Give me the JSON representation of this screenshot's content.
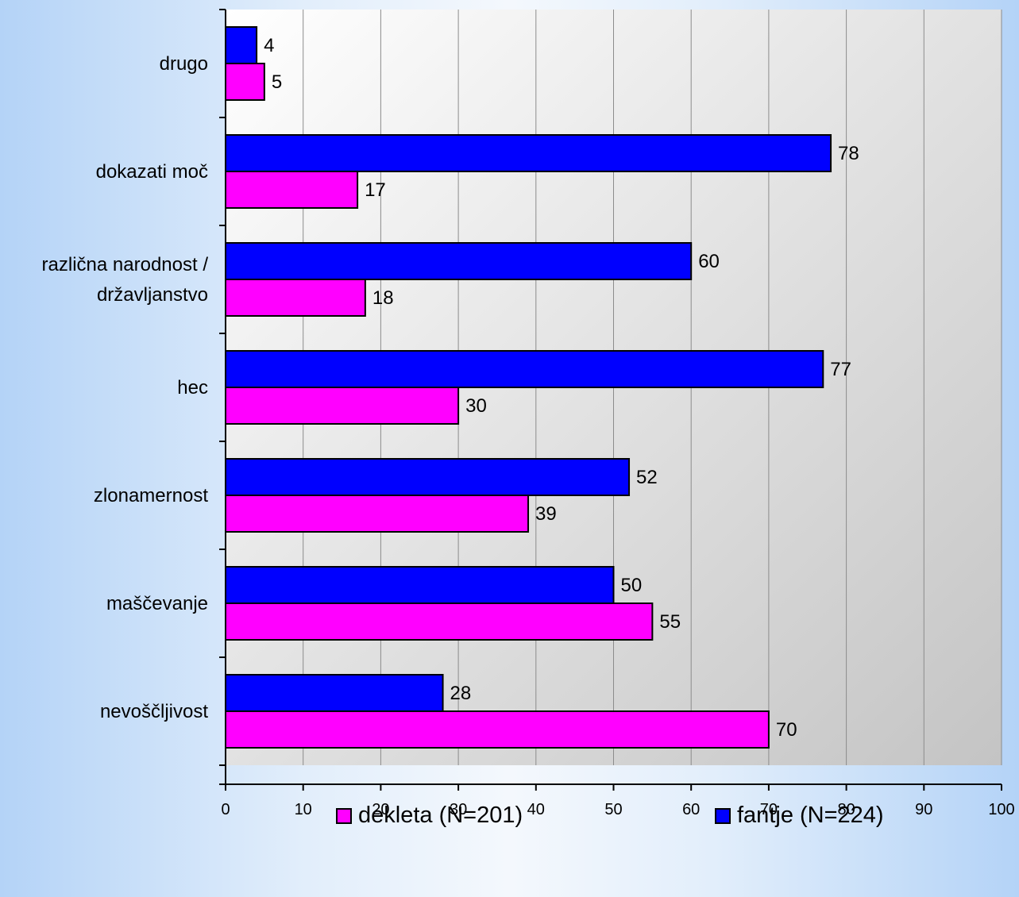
{
  "chart_data": {
    "type": "bar",
    "orientation": "horizontal",
    "categories": [
      "drugo",
      "dokazati moč",
      "različna narodnost / državljanstvo",
      "hec",
      "zlonamernost",
      "maščevanje",
      "nevoščljivost"
    ],
    "category_lines": [
      [
        "drugo"
      ],
      [
        "dokazati moč"
      ],
      [
        "različna narodnost /",
        "državljanstvo"
      ],
      [
        "hec"
      ],
      [
        "zlonamernost"
      ],
      [
        "maščevanje"
      ],
      [
        "nevoščljivost"
      ]
    ],
    "series": [
      {
        "name": "fantje (N=224)",
        "color": "#0000ff",
        "values": [
          4,
          78,
          60,
          77,
          52,
          50,
          28
        ]
      },
      {
        "name": "dekleta (N=201)",
        "color": "#ff00ff",
        "values": [
          5,
          17,
          18,
          30,
          39,
          55,
          70
        ]
      }
    ],
    "xlim": [
      0,
      100
    ],
    "xticks": [
      0,
      10,
      20,
      30,
      40,
      50,
      60,
      70,
      80,
      90,
      100
    ],
    "grid": true,
    "legend_position": "bottom",
    "legend_order": [
      "dekleta (N=201)",
      "fantje (N=224)"
    ]
  }
}
